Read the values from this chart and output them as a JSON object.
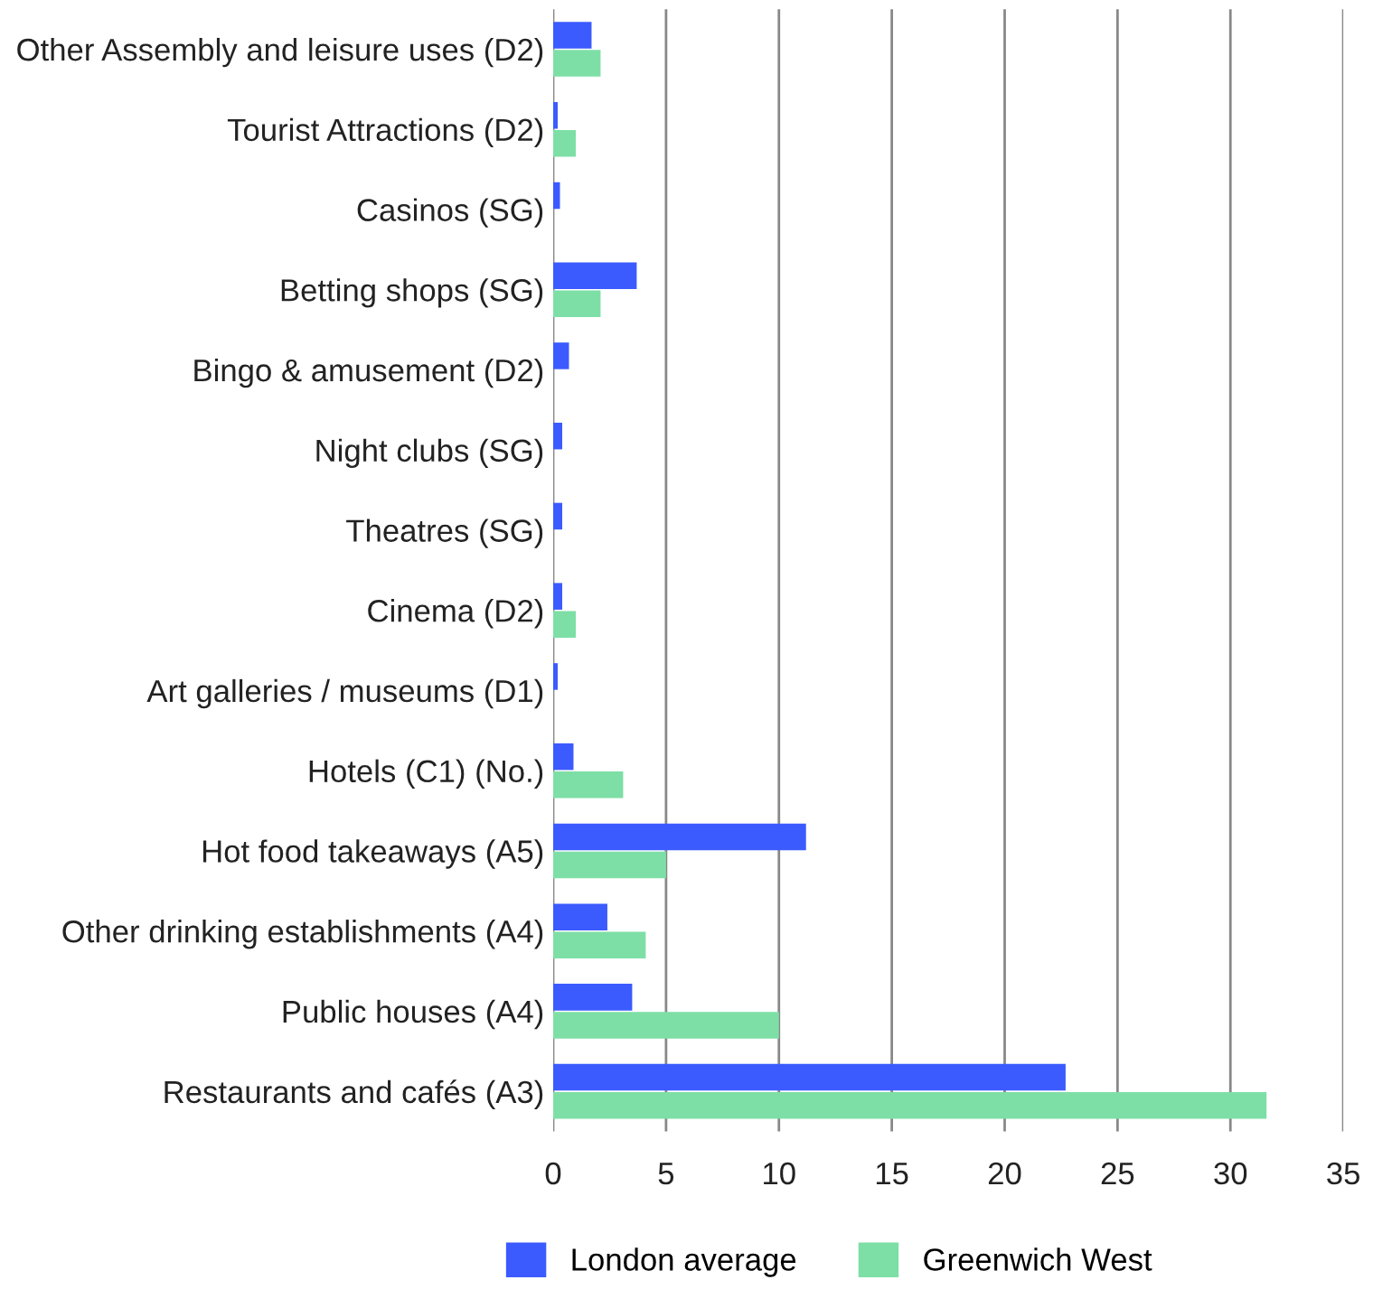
{
  "chart_data": {
    "type": "bar",
    "orientation": "horizontal",
    "categories": [
      "Other Assembly and leisure uses (D2)",
      "Tourist Attractions (D2)",
      "Casinos (SG)",
      "Betting shops (SG)",
      "Bingo & amusement (D2)",
      "Night clubs (SG)",
      "Theatres (SG)",
      "Cinema (D2)",
      "Art galleries / museums (D1)",
      "Hotels (C1) (No.)",
      "Hot food takeaways (A5)",
      "Other drinking establishments (A4)",
      "Public houses (A4)",
      "Restaurants and cafés (A3)"
    ],
    "series": [
      {
        "name": "London average",
        "color": "#3b5bff",
        "values": [
          1.7,
          0.2,
          0.3,
          3.7,
          0.7,
          0.4,
          0.4,
          0.4,
          0.2,
          0.9,
          11.2,
          2.4,
          3.5,
          22.7
        ]
      },
      {
        "name": "Greenwich West",
        "color": "#7ddfa6",
        "values": [
          2.1,
          1.0,
          0,
          2.1,
          0,
          0,
          0,
          1.0,
          0,
          3.1,
          5.0,
          4.1,
          10.0,
          31.6
        ]
      }
    ],
    "xlim": [
      0,
      35
    ],
    "xticks": [
      0,
      5,
      10,
      15,
      20,
      25,
      30,
      35
    ],
    "grid": "x",
    "legend": "bottom"
  }
}
